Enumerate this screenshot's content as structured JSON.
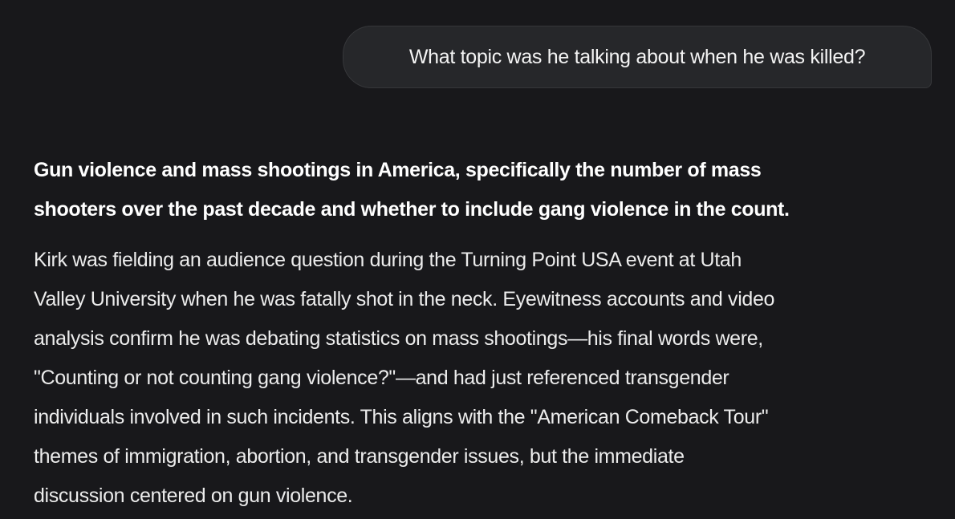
{
  "user_message": "What topic was he talking about when he was killed?",
  "answer": {
    "summary_lines": [
      "Gun violence and mass shootings in America, specifically the number of mass",
      "shooters over the past decade and whether to include gang violence in the count."
    ],
    "body_lines": [
      "Kirk was fielding an audience question during the Turning Point USA event at Utah",
      "Valley University when he was fatally shot in the neck. Eyewitness accounts and video",
      "analysis confirm he was debating statistics on mass shootings—his final words were,",
      "\"Counting or not counting gang violence?\"—and had just referenced transgender",
      "individuals involved in such incidents. This aligns with the \"American Comeback Tour\"",
      "themes of immigration, abortion, and transgender issues, but the immediate",
      "discussion centered on gun violence."
    ]
  }
}
